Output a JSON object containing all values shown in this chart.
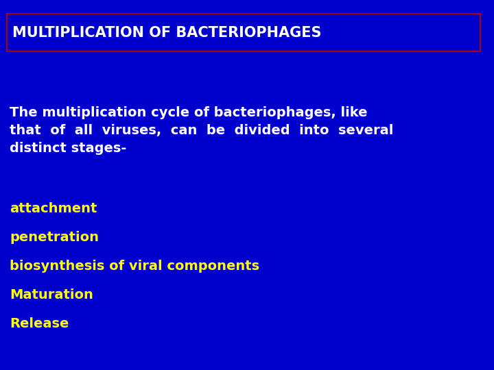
{
  "background_color": "#0000CC",
  "title_text": "MULTIPLICATION OF BACTERIOPHAGES",
  "title_color": "#FFFFFF",
  "title_box_edge_color": "#AA0000",
  "title_fontsize": 15,
  "body_line1": "The multiplication cycle of bacteriophages, like",
  "body_line2": "that  of  all  viruses,  can  be  divided  into  several",
  "body_line3": "distinct stages-",
  "body_color": "#FFFFFF",
  "body_fontsize": 14,
  "list_items": [
    "attachment",
    "penetration",
    "biosynthesis of viral components",
    "Maturation",
    "Release"
  ],
  "list_color": "#FFFF00",
  "list_fontsize": 14
}
